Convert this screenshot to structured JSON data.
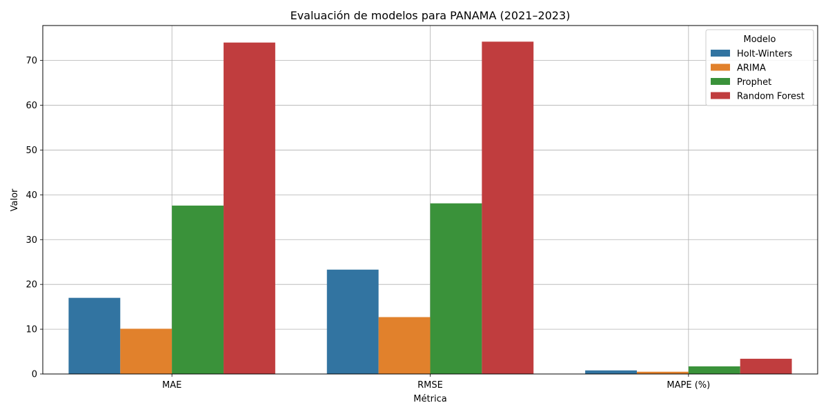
{
  "chart_data": {
    "type": "bar",
    "title": "Evaluación de modelos para PANAMA (2021–2023)",
    "xlabel": "Métrica",
    "ylabel": "Valor",
    "categories": [
      "MAE",
      "RMSE",
      "MAPE (%)"
    ],
    "ylim": [
      0,
      77.8
    ],
    "yticks": [
      0,
      10,
      20,
      30,
      40,
      50,
      60,
      70
    ],
    "grid": true,
    "legend": {
      "title": "Modelo",
      "placement": "top-right"
    },
    "series": [
      {
        "name": "Holt-Winters",
        "color": "#3274a1",
        "values": [
          17.0,
          23.3,
          0.8
        ]
      },
      {
        "name": "ARIMA",
        "color": "#e1812c",
        "values": [
          10.1,
          12.7,
          0.5
        ]
      },
      {
        "name": "Prophet",
        "color": "#3a923a",
        "values": [
          37.6,
          38.1,
          1.7
        ]
      },
      {
        "name": "Random Forest",
        "color": "#c03d3e",
        "values": [
          74.0,
          74.2,
          3.4
        ]
      }
    ]
  }
}
